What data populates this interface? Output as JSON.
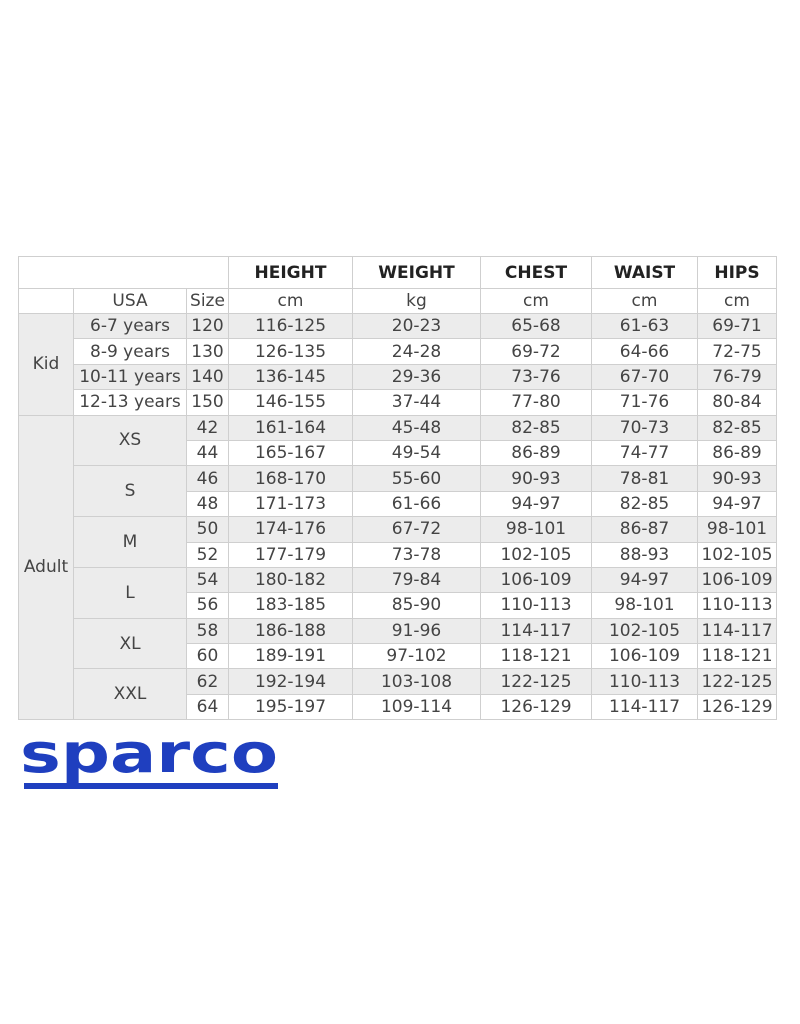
{
  "table": {
    "headers": [
      "HEIGHT",
      "WEIGHT",
      "CHEST",
      "WAIST",
      "HIPS"
    ],
    "units_row": {
      "usa": "USA",
      "size": "Size",
      "units": [
        "cm",
        "kg",
        "cm",
        "cm",
        "cm"
      ]
    },
    "groups": [
      {
        "label": "Kid",
        "rows": [
          {
            "usa": "6-7 years",
            "size": "120",
            "values": [
              "116-125",
              "20-23",
              "65-68",
              "61-63",
              "69-71"
            ]
          },
          {
            "usa": "8-9 years",
            "size": "130",
            "values": [
              "126-135",
              "24-28",
              "69-72",
              "64-66",
              "72-75"
            ]
          },
          {
            "usa": "10-11 years",
            "size": "140",
            "values": [
              "136-145",
              "29-36",
              "73-76",
              "67-70",
              "76-79"
            ]
          },
          {
            "usa": "12-13 years",
            "size": "150",
            "values": [
              "146-155",
              "37-44",
              "77-80",
              "71-76",
              "80-84"
            ]
          }
        ]
      },
      {
        "label": "Adult",
        "subgroups": [
          {
            "usa": "XS",
            "rows": [
              {
                "size": "42",
                "values": [
                  "161-164",
                  "45-48",
                  "82-85",
                  "70-73",
                  "82-85"
                ]
              },
              {
                "size": "44",
                "values": [
                  "165-167",
                  "49-54",
                  "86-89",
                  "74-77",
                  "86-89"
                ]
              }
            ]
          },
          {
            "usa": "S",
            "rows": [
              {
                "size": "46",
                "values": [
                  "168-170",
                  "55-60",
                  "90-93",
                  "78-81",
                  "90-93"
                ]
              },
              {
                "size": "48",
                "values": [
                  "171-173",
                  "61-66",
                  "94-97",
                  "82-85",
                  "94-97"
                ]
              }
            ]
          },
          {
            "usa": "M",
            "rows": [
              {
                "size": "50",
                "values": [
                  "174-176",
                  "67-72",
                  "98-101",
                  "86-87",
                  "98-101"
                ]
              },
              {
                "size": "52",
                "values": [
                  "177-179",
                  "73-78",
                  "102-105",
                  "88-93",
                  "102-105"
                ]
              }
            ]
          },
          {
            "usa": "L",
            "rows": [
              {
                "size": "54",
                "values": [
                  "180-182",
                  "79-84",
                  "106-109",
                  "94-97",
                  "106-109"
                ]
              },
              {
                "size": "56",
                "values": [
                  "183-185",
                  "85-90",
                  "110-113",
                  "98-101",
                  "110-113"
                ]
              }
            ]
          },
          {
            "usa": "XL",
            "rows": [
              {
                "size": "58",
                "values": [
                  "186-188",
                  "91-96",
                  "114-117",
                  "102-105",
                  "114-117"
                ]
              },
              {
                "size": "60",
                "values": [
                  "189-191",
                  "97-102",
                  "118-121",
                  "106-109",
                  "118-121"
                ]
              }
            ]
          },
          {
            "usa": "XXL",
            "rows": [
              {
                "size": "62",
                "values": [
                  "192-194",
                  "103-108",
                  "122-125",
                  "110-113",
                  "122-125"
                ]
              },
              {
                "size": "64",
                "values": [
                  "195-197",
                  "109-114",
                  "126-129",
                  "114-117",
                  "126-129"
                ]
              }
            ]
          }
        ]
      }
    ]
  },
  "logo": {
    "text": "sparco",
    "color": "#1f3fbf"
  }
}
